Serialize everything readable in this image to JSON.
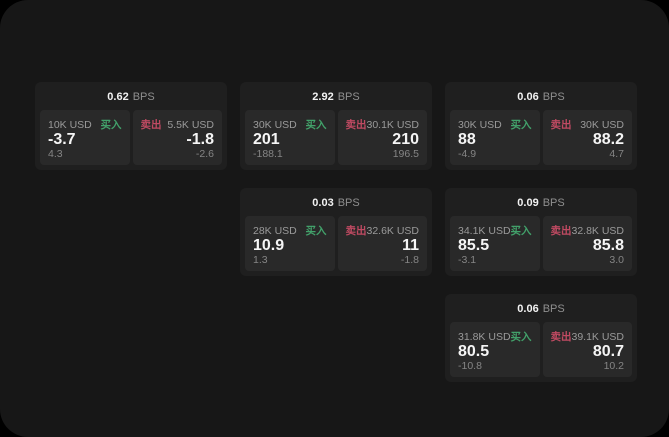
{
  "labels": {
    "bps_unit": "BPS",
    "buy": "买入",
    "sell": "卖出"
  },
  "colors": {
    "buy_green": "#42a16a",
    "sell_red": "#c04a62",
    "window_bg": "#171717",
    "card_bg": "#1f1f1f",
    "panel_bg": "#292929",
    "outer_bg": "#000000"
  },
  "cards": [
    {
      "bps": "0.62",
      "buy": {
        "size": "10K USD",
        "value": "-3.7",
        "sub": "4.3"
      },
      "sell": {
        "size": "5.5K USD",
        "value": "-1.8",
        "sub": "-2.6"
      }
    },
    {
      "bps": "2.92",
      "buy": {
        "size": "30K USD",
        "value": "201",
        "sub": "-188.1"
      },
      "sell": {
        "size": "30.1K USD",
        "value": "210",
        "sub": "196.5"
      }
    },
    {
      "bps": "0.06",
      "buy": {
        "size": "30K USD",
        "value": "88",
        "sub": "-4.9"
      },
      "sell": {
        "size": "30K USD",
        "value": "88.2",
        "sub": "4.7"
      }
    },
    {
      "bps": "0.03",
      "buy": {
        "size": "28K USD",
        "value": "10.9",
        "sub": "1.3"
      },
      "sell": {
        "size": "32.6K USD",
        "value": "11",
        "sub": "-1.8"
      }
    },
    {
      "bps": "0.09",
      "buy": {
        "size": "34.1K USD",
        "value": "85.5",
        "sub": "-3.1"
      },
      "sell": {
        "size": "32.8K USD",
        "value": "85.8",
        "sub": "3.0"
      }
    },
    {
      "bps": "0.06",
      "buy": {
        "size": "31.8K USD",
        "value": "80.5",
        "sub": "-10.8"
      },
      "sell": {
        "size": "39.1K USD",
        "value": "80.7",
        "sub": "10.2"
      }
    }
  ]
}
